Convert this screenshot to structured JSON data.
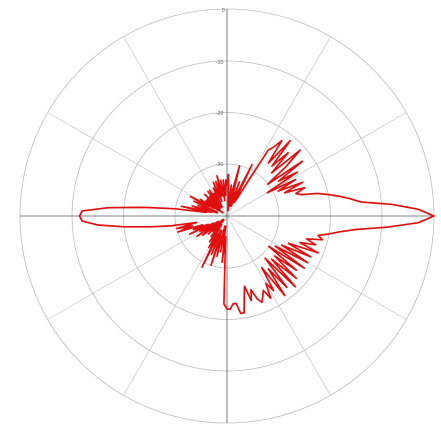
{
  "chart_data": {
    "type": "polar-line",
    "title": "",
    "radial_axis": {
      "unit": "dB",
      "tick_labels": [
        "0",
        "-10",
        "-20",
        "-30"
      ],
      "ticks": [
        0,
        -10,
        -20,
        -30
      ],
      "range": [
        -40,
        0
      ]
    },
    "angular_grid_spacing_deg": 30,
    "zero_direction": "top",
    "grid": true,
    "series": [
      {
        "color": "#e01010",
        "points": [
          {
            "angle": 0,
            "r": -34
          },
          {
            "angle": 2,
            "r": -32
          },
          {
            "angle": 4,
            "r": -36
          },
          {
            "angle": 6,
            "r": -38
          },
          {
            "angle": 8,
            "r": -34
          },
          {
            "angle": 10,
            "r": -39
          },
          {
            "angle": 12,
            "r": -35
          },
          {
            "angle": 14,
            "r": -30
          },
          {
            "angle": 16,
            "r": -36
          },
          {
            "angle": 18,
            "r": -38
          },
          {
            "angle": 20,
            "r": -33
          },
          {
            "angle": 22,
            "r": -38
          },
          {
            "angle": 24,
            "r": -35
          },
          {
            "angle": 26,
            "r": -29
          },
          {
            "angle": 28,
            "r": -37
          },
          {
            "angle": 30,
            "r": -36
          },
          {
            "angle": 32,
            "r": -25
          },
          {
            "angle": 34,
            "r": -24
          },
          {
            "angle": 36,
            "r": -22
          },
          {
            "angle": 38,
            "r": -27
          },
          {
            "angle": 40,
            "r": -21
          },
          {
            "angle": 42,
            "r": -27
          },
          {
            "angle": 44,
            "r": -23
          },
          {
            "angle": 46,
            "r": -28
          },
          {
            "angle": 48,
            "r": -21
          },
          {
            "angle": 50,
            "r": -25
          },
          {
            "angle": 52,
            "r": -30
          },
          {
            "angle": 54,
            "r": -22
          },
          {
            "angle": 56,
            "r": -28
          },
          {
            "angle": 58,
            "r": -24
          },
          {
            "angle": 60,
            "r": -31
          },
          {
            "angle": 62,
            "r": -25
          },
          {
            "angle": 64,
            "r": -29
          },
          {
            "angle": 66,
            "r": -24
          },
          {
            "angle": 68,
            "r": -28
          },
          {
            "angle": 70,
            "r": -24
          },
          {
            "angle": 72,
            "r": -26
          },
          {
            "angle": 74,
            "r": -25
          },
          {
            "angle": 76,
            "r": -22
          },
          {
            "angle": 78,
            "r": -20
          },
          {
            "angle": 80,
            "r": -18
          },
          {
            "angle": 82,
            "r": -16
          },
          {
            "angle": 84,
            "r": -14
          },
          {
            "angle": 86,
            "r": -8
          },
          {
            "angle": 88,
            "r": -3
          },
          {
            "angle": 90,
            "r": 0
          },
          {
            "angle": 92,
            "r": -3
          },
          {
            "angle": 94,
            "r": -9
          },
          {
            "angle": 96,
            "r": -15
          },
          {
            "angle": 98,
            "r": -18
          },
          {
            "angle": 100,
            "r": -20
          },
          {
            "angle": 102,
            "r": -22
          },
          {
            "angle": 104,
            "r": -21
          },
          {
            "angle": 106,
            "r": -24
          },
          {
            "angle": 108,
            "r": -22
          },
          {
            "angle": 110,
            "r": -25
          },
          {
            "angle": 112,
            "r": -21
          },
          {
            "angle": 114,
            "r": -27
          },
          {
            "angle": 116,
            "r": -22
          },
          {
            "angle": 118,
            "r": -28
          },
          {
            "angle": 120,
            "r": -22
          },
          {
            "angle": 122,
            "r": -29
          },
          {
            "angle": 124,
            "r": -22
          },
          {
            "angle": 126,
            "r": -30
          },
          {
            "angle": 128,
            "r": -23
          },
          {
            "angle": 130,
            "r": -28
          },
          {
            "angle": 132,
            "r": -22
          },
          {
            "angle": 134,
            "r": -28
          },
          {
            "angle": 136,
            "r": -21
          },
          {
            "angle": 138,
            "r": -29
          },
          {
            "angle": 140,
            "r": -22
          },
          {
            "angle": 142,
            "r": -27
          },
          {
            "angle": 144,
            "r": -21
          },
          {
            "angle": 146,
            "r": -28
          },
          {
            "angle": 148,
            "r": -23
          },
          {
            "angle": 150,
            "r": -25
          },
          {
            "angle": 152,
            "r": -22
          },
          {
            "angle": 154,
            "r": -24
          },
          {
            "angle": 156,
            "r": -23
          },
          {
            "angle": 158,
            "r": -22
          },
          {
            "angle": 160,
            "r": -23
          },
          {
            "angle": 162,
            "r": -25
          },
          {
            "angle": 164,
            "r": -23
          },
          {
            "angle": 166,
            "r": -26
          },
          {
            "angle": 168,
            "r": -24
          },
          {
            "angle": 170,
            "r": -21
          },
          {
            "angle": 172,
            "r": -21
          },
          {
            "angle": 174,
            "r": -23
          },
          {
            "angle": 176,
            "r": -23
          },
          {
            "angle": 178,
            "r": -22
          },
          {
            "angle": 180,
            "r": -22
          },
          {
            "angle": 182,
            "r": -23
          },
          {
            "angle": 184,
            "r": -36
          },
          {
            "angle": 186,
            "r": -31
          },
          {
            "angle": 188,
            "r": -38
          },
          {
            "angle": 190,
            "r": -33
          },
          {
            "angle": 192,
            "r": -38
          },
          {
            "angle": 194,
            "r": -32
          },
          {
            "angle": 196,
            "r": -36
          },
          {
            "angle": 198,
            "r": -30
          },
          {
            "angle": 200,
            "r": -37
          },
          {
            "angle": 202,
            "r": -32
          },
          {
            "angle": 204,
            "r": -37
          },
          {
            "angle": 206,
            "r": -29
          },
          {
            "angle": 208,
            "r": -36
          },
          {
            "angle": 210,
            "r": -33
          },
          {
            "angle": 212,
            "r": -38
          },
          {
            "angle": 214,
            "r": -34
          },
          {
            "angle": 216,
            "r": -38
          },
          {
            "angle": 218,
            "r": -35
          },
          {
            "angle": 220,
            "r": -39
          },
          {
            "angle": 222,
            "r": -36
          },
          {
            "angle": 224,
            "r": -38
          },
          {
            "angle": 226,
            "r": -35
          },
          {
            "angle": 228,
            "r": -39
          },
          {
            "angle": 230,
            "r": -36
          },
          {
            "angle": 232,
            "r": -34
          },
          {
            "angle": 234,
            "r": -38
          },
          {
            "angle": 236,
            "r": -33
          },
          {
            "angle": 238,
            "r": -38
          },
          {
            "angle": 240,
            "r": -34
          },
          {
            "angle": 242,
            "r": -37
          },
          {
            "angle": 244,
            "r": -32
          },
          {
            "angle": 246,
            "r": -36
          },
          {
            "angle": 248,
            "r": -33
          },
          {
            "angle": 250,
            "r": -35
          },
          {
            "angle": 252,
            "r": -30
          },
          {
            "angle": 254,
            "r": -33
          },
          {
            "angle": 256,
            "r": -30
          },
          {
            "angle": 258,
            "r": -34
          },
          {
            "angle": 260,
            "r": -29
          },
          {
            "angle": 262,
            "r": -25
          },
          {
            "angle": 264,
            "r": -20
          },
          {
            "angle": 266,
            "r": -15
          },
          {
            "angle": 268,
            "r": -12
          },
          {
            "angle": 270,
            "r": -11.5
          },
          {
            "angle": 272,
            "r": -12
          },
          {
            "angle": 274,
            "r": -17
          },
          {
            "angle": 276,
            "r": -24
          },
          {
            "angle": 278,
            "r": -30
          },
          {
            "angle": 280,
            "r": -36
          },
          {
            "angle": 282,
            "r": -31
          },
          {
            "angle": 284,
            "r": -37
          },
          {
            "angle": 286,
            "r": -33
          },
          {
            "angle": 288,
            "r": -38
          },
          {
            "angle": 290,
            "r": -34
          },
          {
            "angle": 292,
            "r": -38
          },
          {
            "angle": 294,
            "r": -33
          },
          {
            "angle": 296,
            "r": -36
          },
          {
            "angle": 298,
            "r": -32
          },
          {
            "angle": 300,
            "r": -37
          },
          {
            "angle": 302,
            "r": -34
          },
          {
            "angle": 304,
            "r": -38
          },
          {
            "angle": 306,
            "r": -35
          },
          {
            "angle": 308,
            "r": -39
          },
          {
            "angle": 310,
            "r": -35
          },
          {
            "angle": 312,
            "r": -38
          },
          {
            "angle": 314,
            "r": -34
          },
          {
            "angle": 316,
            "r": -38
          },
          {
            "angle": 318,
            "r": -35
          },
          {
            "angle": 320,
            "r": -37
          },
          {
            "angle": 322,
            "r": -34
          },
          {
            "angle": 324,
            "r": -38
          },
          {
            "angle": 326,
            "r": -34
          },
          {
            "angle": 328,
            "r": -37
          },
          {
            "angle": 330,
            "r": -35
          },
          {
            "angle": 332,
            "r": -38
          },
          {
            "angle": 334,
            "r": -34
          },
          {
            "angle": 336,
            "r": -36
          },
          {
            "angle": 338,
            "r": -33
          },
          {
            "angle": 340,
            "r": -37
          },
          {
            "angle": 342,
            "r": -33
          },
          {
            "angle": 344,
            "r": -36
          },
          {
            "angle": 346,
            "r": -32
          },
          {
            "angle": 348,
            "r": -36
          },
          {
            "angle": 350,
            "r": -33
          },
          {
            "angle": 352,
            "r": -37
          },
          {
            "angle": 354,
            "r": -33
          },
          {
            "angle": 356,
            "r": -36
          },
          {
            "angle": 358,
            "r": -33
          },
          {
            "angle": 360,
            "r": -34
          }
        ]
      }
    ]
  }
}
